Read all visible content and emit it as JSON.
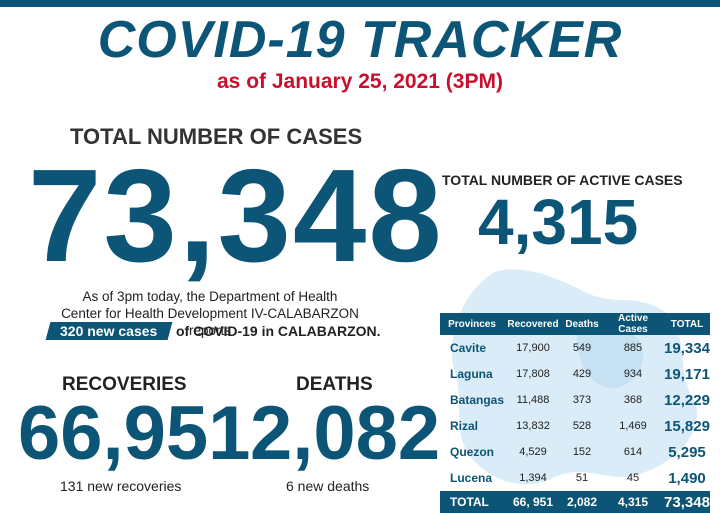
{
  "header": {
    "title": "COVID-19 TRACKER",
    "subtitle": "as of January 25, 2021 (3PM)"
  },
  "total_cases": {
    "label": "TOTAL NUMBER OF CASES",
    "value": "73,348"
  },
  "active_cases": {
    "label": "TOTAL NUMBER OF ACTIVE CASES",
    "value": "4,315"
  },
  "note": {
    "line1": "As of 3pm today, the Department of Health",
    "line2": "Center for Health Development IV-CALABARZON reports",
    "badge": "320 new cases",
    "line3_rest": "of COVID-19 in CALABARZON."
  },
  "recoveries": {
    "label": "RECOVERIES",
    "value": "66,951",
    "sub": "131 new recoveries"
  },
  "deaths": {
    "label": "DEATHS",
    "value": "2,082",
    "sub": "6 new deaths"
  },
  "table": {
    "headers": [
      "Provinces",
      "Recovered",
      "Deaths",
      "Active Cases",
      "TOTAL"
    ],
    "rows": [
      [
        "Cavite",
        "17,900",
        "549",
        "885",
        "19,334"
      ],
      [
        "Laguna",
        "17,808",
        "429",
        "934",
        "19,171"
      ],
      [
        "Batangas",
        "11,488",
        "373",
        "368",
        "12,229"
      ],
      [
        "Rizal",
        "13,832",
        "528",
        "1,469",
        "15,829"
      ],
      [
        "Quezon",
        "4,529",
        "152",
        "614",
        "5,295"
      ],
      [
        "Lucena",
        "1,394",
        "51",
        "45",
        "1,490"
      ]
    ],
    "total_row": [
      "TOTAL",
      "66, 951",
      "2,082",
      "4,315",
      "73,348"
    ]
  },
  "colors": {
    "primary": "#0d5577",
    "accent": "#c8102e"
  }
}
